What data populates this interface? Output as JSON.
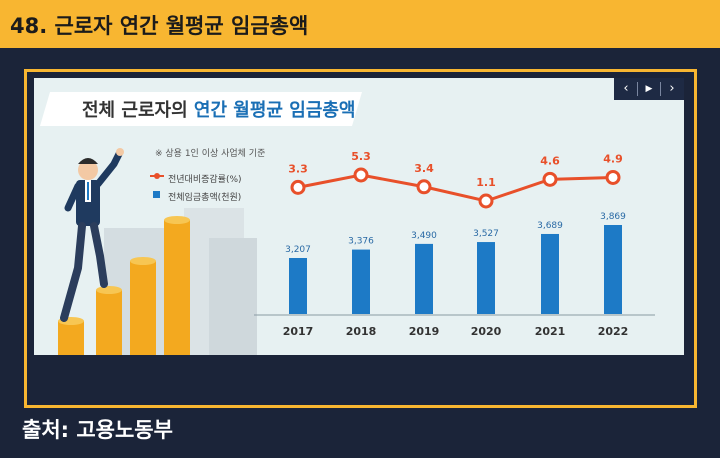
{
  "header": {
    "title": "48. 근로자 연간 월평균 임금총액"
  },
  "slide": {
    "title_part1": "전체 근로자의",
    "title_part2": "연간 월평균 임금총액",
    "note": "※ 상용 1인 이상 사업체 기준",
    "legend_line": "전년대비증감률(%)",
    "legend_bar": "전체임금총액(천원)",
    "nav": {
      "prev": "‹",
      "play": "▶",
      "next": "›"
    }
  },
  "chart_data": {
    "type": "bar",
    "categories": [
      "2017",
      "2018",
      "2019",
      "2020",
      "2021",
      "2022"
    ],
    "series": [
      {
        "name": "전체임금총액(천원)",
        "type": "bar",
        "values": [
          3207,
          3376,
          3490,
          3527,
          3689,
          3869
        ],
        "labels": [
          "3,207",
          "3,376",
          "3,490",
          "3,527",
          "3,689",
          "3,869"
        ],
        "color": "#1d7ac6"
      },
      {
        "name": "전년대비증감률(%)",
        "type": "line",
        "values": [
          3.3,
          5.3,
          3.4,
          1.1,
          4.6,
          4.9
        ],
        "labels": [
          "3.3",
          "5.3",
          "3.4",
          "1.1",
          "4.6",
          "4.9"
        ],
        "color": "#e8502a"
      }
    ]
  },
  "footer": {
    "source": "출처: 고용노동부"
  },
  "colors": {
    "accent": "#f8b631",
    "background": "#1b2439",
    "bar": "#1d7ac6",
    "line": "#e8502a"
  }
}
